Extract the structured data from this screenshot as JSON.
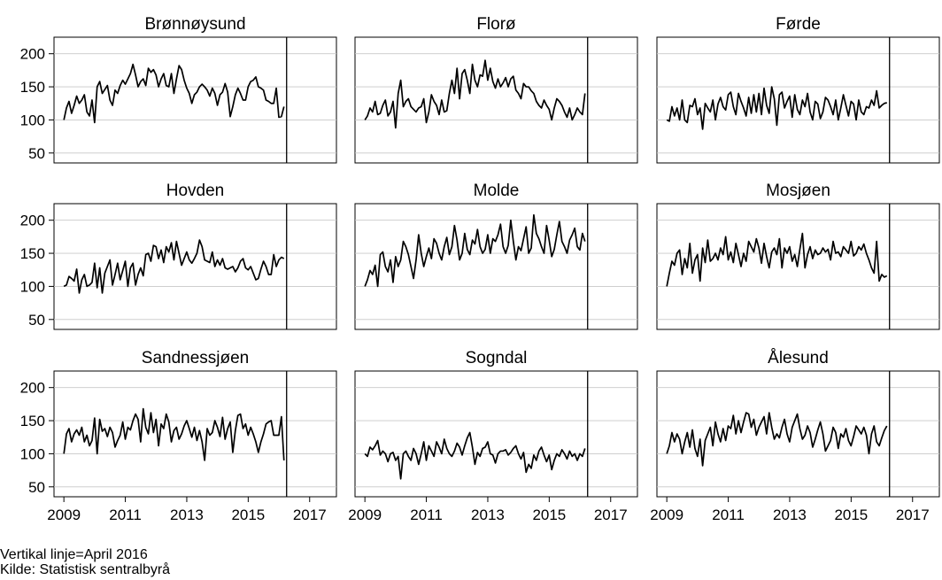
{
  "footnotes": {
    "vertical_line": "Vertikal linje=April 2016",
    "source": "Kilde: Statistisk sentralbyrå"
  },
  "chart_data": {
    "type": "line",
    "layout": "3x3 small multiples",
    "x_ticks": [
      2009,
      2011,
      2013,
      2015,
      2017
    ],
    "x_range": [
      2009.0,
      2017.55
    ],
    "y_ticks": [
      50,
      100,
      150,
      200
    ],
    "y_range": [
      35,
      225
    ],
    "grid": true,
    "legend": "none",
    "vertical_line": 2016.25,
    "series_color": "#000000",
    "panels": [
      {
        "title": "Brønnøysund",
        "start": 2009.0,
        "step": 0.0833,
        "values": [
          100,
          118,
          128,
          110,
          122,
          136,
          125,
          130,
          138,
          112,
          106,
          130,
          96,
          150,
          158,
          140,
          146,
          152,
          130,
          122,
          145,
          140,
          152,
          160,
          154,
          162,
          170,
          184,
          168,
          150,
          158,
          162,
          152,
          178,
          172,
          176,
          168,
          150,
          162,
          170,
          152,
          150,
          170,
          140,
          162,
          182,
          176,
          160,
          148,
          140,
          125,
          138,
          142,
          150,
          154,
          150,
          145,
          136,
          148,
          140,
          122,
          138,
          142,
          155,
          142,
          105,
          120,
          138,
          148,
          140,
          130,
          130,
          150,
          158,
          160,
          165,
          150,
          148,
          145,
          130,
          128,
          125,
          125,
          148,
          104,
          105,
          120
        ]
      },
      {
        "title": "Florø",
        "start": 2009.0,
        "step": 0.0833,
        "values": [
          100,
          106,
          118,
          112,
          128,
          108,
          110,
          122,
          130,
          106,
          112,
          128,
          88,
          140,
          160,
          120,
          128,
          132,
          120,
          116,
          112,
          118,
          120,
          132,
          96,
          112,
          138,
          128,
          122,
          108,
          130,
          112,
          114,
          140,
          160,
          140,
          178,
          132,
          170,
          176,
          160,
          140,
          184,
          160,
          150,
          168,
          166,
          190,
          160,
          178,
          158,
          148,
          162,
          150,
          156,
          164,
          150,
          162,
          166,
          145,
          140,
          132,
          155,
          150,
          150,
          144,
          140,
          128,
          122,
          118,
          130,
          122,
          116,
          100,
          118,
          132,
          128,
          122,
          112,
          104,
          118,
          100,
          108,
          118,
          112,
          108,
          140
        ]
      },
      {
        "title": "Førde",
        "start": 2009.0,
        "step": 0.0833,
        "values": [
          100,
          98,
          120,
          106,
          118,
          100,
          130,
          100,
          96,
          122,
          120,
          132,
          108,
          118,
          86,
          125,
          118,
          112,
          130,
          100,
          124,
          134,
          120,
          115,
          138,
          142,
          120,
          108,
          140,
          128,
          118,
          106,
          134,
          110,
          138,
          112,
          140,
          108,
          148,
          122,
          110,
          150,
          132,
          92,
          138,
          142,
          118,
          128,
          136,
          104,
          138,
          116,
          108,
          130,
          120,
          140,
          112,
          100,
          128,
          124,
          102,
          112,
          134,
          130,
          120,
          108,
          130,
          100,
          118,
          138,
          122,
          106,
          128,
          124,
          100,
          130,
          112,
          108,
          120,
          118,
          130,
          122,
          144,
          118,
          122,
          125,
          126
        ]
      },
      {
        "title": "Hovden",
        "start": 2009.0,
        "step": 0.0833,
        "values": [
          100,
          102,
          115,
          112,
          108,
          126,
          90,
          110,
          118,
          100,
          102,
          106,
          135,
          98,
          128,
          90,
          120,
          130,
          140,
          102,
          118,
          135,
          110,
          124,
          138,
          100,
          128,
          135,
          102,
          118,
          128,
          116,
          148,
          150,
          138,
          162,
          160,
          142,
          155,
          136,
          160,
          152,
          166,
          140,
          168,
          150,
          132,
          142,
          152,
          140,
          135,
          142,
          150,
          170,
          160,
          140,
          138,
          136,
          152,
          130,
          140,
          132,
          142,
          128,
          126,
          128,
          130,
          122,
          128,
          138,
          142,
          128,
          125,
          130,
          120,
          110,
          112,
          126,
          138,
          130,
          118,
          118,
          148,
          130,
          140,
          144,
          142
        ]
      },
      {
        "title": "Molde",
        "start": 2009.0,
        "step": 0.0833,
        "values": [
          100,
          110,
          124,
          118,
          132,
          100,
          148,
          152,
          130,
          122,
          140,
          106,
          145,
          130,
          140,
          168,
          160,
          148,
          130,
          112,
          140,
          178,
          150,
          130,
          145,
          158,
          142,
          172,
          165,
          150,
          140,
          160,
          174,
          148,
          160,
          192,
          170,
          140,
          150,
          180,
          156,
          148,
          170,
          164,
          186,
          160,
          150,
          156,
          178,
          150,
          172,
          168,
          178,
          194,
          160,
          150,
          162,
          200,
          168,
          140,
          160,
          154,
          172,
          190,
          150,
          158,
          208,
          180,
          172,
          160,
          150,
          192,
          170,
          145,
          156,
          178,
          198,
          168,
          160,
          150,
          170,
          178,
          188,
          160,
          155,
          180,
          168
        ]
      },
      {
        "title": "Mosjøen",
        "start": 2009.0,
        "step": 0.0833,
        "values": [
          100,
          120,
          138,
          132,
          150,
          155,
          118,
          142,
          128,
          165,
          120,
          140,
          148,
          108,
          158,
          136,
          170,
          138,
          142,
          150,
          140,
          158,
          148,
          175,
          140,
          152,
          136,
          165,
          148,
          130,
          150,
          138,
          168,
          160,
          152,
          172,
          158,
          135,
          165,
          145,
          128,
          152,
          158,
          148,
          172,
          128,
          158,
          150,
          160,
          138,
          148,
          130,
          156,
          180,
          128,
          148,
          160,
          142,
          155,
          148,
          150,
          158,
          152,
          156,
          140,
          168,
          150,
          152,
          145,
          160,
          155,
          150,
          168,
          146,
          150,
          160,
          155,
          164,
          150,
          140,
          128,
          120,
          168,
          108,
          118,
          114,
          116
        ]
      },
      {
        "title": "Sandnessjøen",
        "start": 2009.0,
        "step": 0.0833,
        "values": [
          100,
          130,
          138,
          118,
          130,
          136,
          128,
          140,
          118,
          128,
          112,
          120,
          154,
          100,
          152,
          134,
          138,
          126,
          140,
          132,
          110,
          120,
          128,
          148,
          122,
          140,
          136,
          150,
          160,
          152,
          118,
          168,
          140,
          130,
          162,
          132,
          152,
          112,
          145,
          138,
          160,
          148,
          118,
          135,
          140,
          122,
          130,
          142,
          150,
          138,
          125,
          140,
          120,
          135,
          118,
          90,
          138,
          128,
          132,
          150,
          140,
          126,
          155,
          122,
          138,
          148,
          102,
          135,
          158,
          160,
          138,
          145,
          128,
          140,
          130,
          118,
          102,
          118,
          130,
          145,
          148,
          150,
          128,
          128,
          128,
          156,
          90
        ]
      },
      {
        "title": "Sogndal",
        "start": 2009.0,
        "step": 0.0833,
        "values": [
          100,
          96,
          110,
          106,
          112,
          120,
          98,
          104,
          100,
          88,
          100,
          102,
          90,
          96,
          62,
          100,
          104,
          96,
          90,
          108,
          100,
          84,
          100,
          118,
          90,
          112,
          104,
          96,
          118,
          110,
          100,
          122,
          108,
          100,
          96,
          104,
          116,
          110,
          98,
          112,
          124,
          132,
          110,
          84,
          102,
          96,
          108,
          110,
          118,
          100,
          98,
          86,
          100,
          104,
          104,
          106,
          98,
          102,
          108,
          112,
          100,
          92,
          102,
          72,
          84,
          78,
          98,
          90,
          104,
          110,
          98,
          88,
          98,
          76,
          90,
          100,
          96,
          106,
          100,
          92,
          104,
          96,
          100,
          90,
          100,
          96,
          108
        ]
      },
      {
        "title": "Ålesund",
        "start": 2009.0,
        "step": 0.0833,
        "values": [
          100,
          112,
          132,
          118,
          130,
          122,
          100,
          118,
          132,
          110,
          136,
          108,
          96,
          122,
          82,
          120,
          130,
          140,
          112,
          148,
          130,
          118,
          138,
          120,
          142,
          138,
          158,
          130,
          150,
          132,
          148,
          162,
          160,
          140,
          152,
          128,
          140,
          148,
          156,
          130,
          162,
          140,
          122,
          130,
          124,
          140,
          152,
          130,
          118,
          140,
          150,
          160,
          138,
          122,
          128,
          142,
          132,
          110,
          122,
          136,
          148,
          130,
          104,
          112,
          120,
          140,
          132,
          108,
          130,
          125,
          138,
          120,
          112,
          126,
          142,
          136,
          130,
          140,
          128,
          100,
          130,
          142,
          118,
          112,
          124,
          135,
          142
        ]
      }
    ]
  }
}
